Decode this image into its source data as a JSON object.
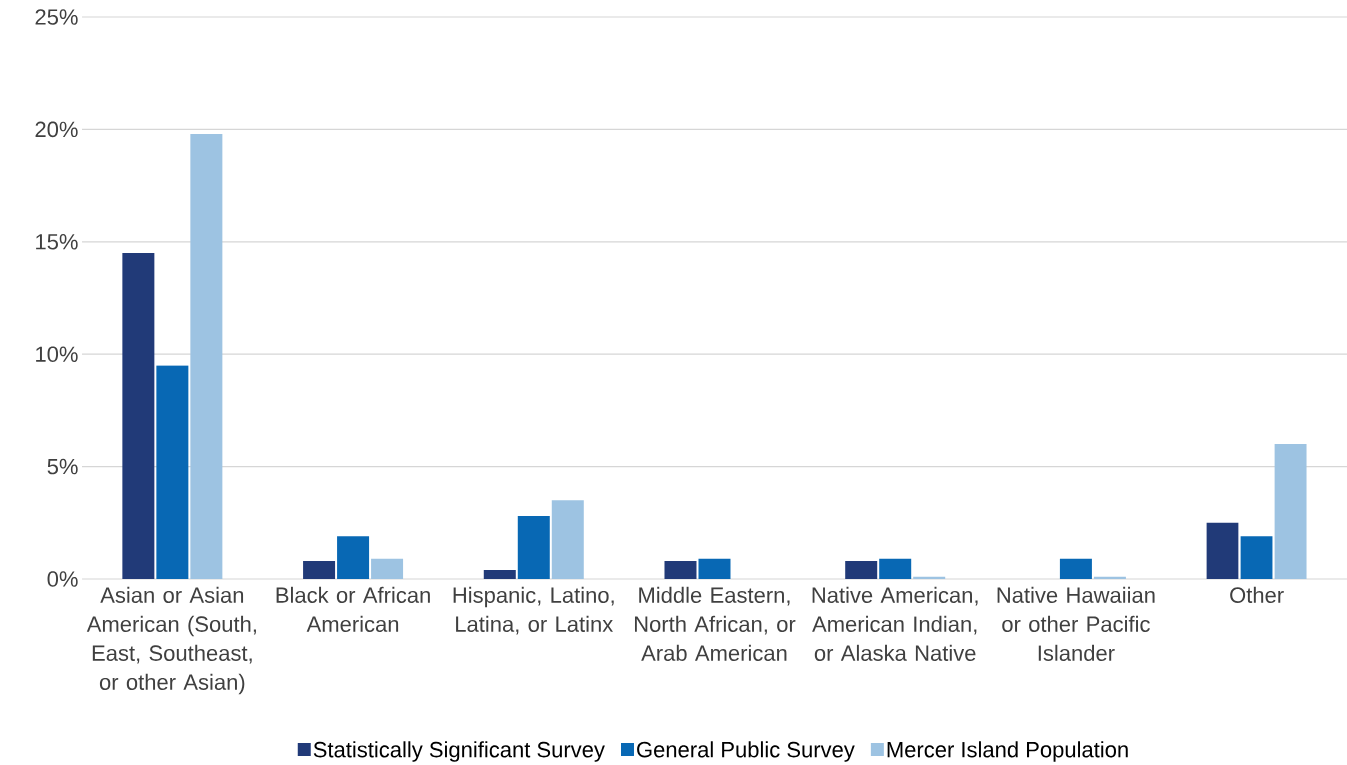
{
  "chart_data": {
    "type": "bar",
    "categories": [
      "Asian or Asian American (South, East, Southeast, or other Asian)",
      "Black or African American",
      "Hispanic, Latino, Latina, or Latinx",
      "Middle Eastern, North African, or Arab American",
      "Native American, American Indian, or Alaska Native",
      "Native Hawaiian or other Pacific Islander",
      "Other"
    ],
    "series": [
      {
        "name": "Statistically Significant Survey",
        "color": "#213a78",
        "values": [
          14.5,
          0.8,
          0.4,
          0.8,
          0.8,
          0,
          2.5
        ]
      },
      {
        "name": "General Public Survey",
        "color": "#0868b4",
        "values": [
          9.5,
          1.9,
          2.8,
          0.9,
          0.9,
          0.9,
          1.9
        ]
      },
      {
        "name": "Mercer Island Population",
        "color": "#9dc3e2",
        "values": [
          19.8,
          0.9,
          3.5,
          0,
          0.1,
          0.1,
          6.0
        ]
      }
    ],
    "ylim": [
      0,
      25
    ],
    "yticks": [
      {
        "value": 0,
        "label": "0%"
      },
      {
        "value": 5,
        "label": "5%"
      },
      {
        "value": 10,
        "label": "10%"
      },
      {
        "value": 15,
        "label": "15%"
      },
      {
        "value": 20,
        "label": "20%"
      },
      {
        "value": 25,
        "label": "25%"
      }
    ],
    "grid": "y",
    "legend": "bottom"
  }
}
